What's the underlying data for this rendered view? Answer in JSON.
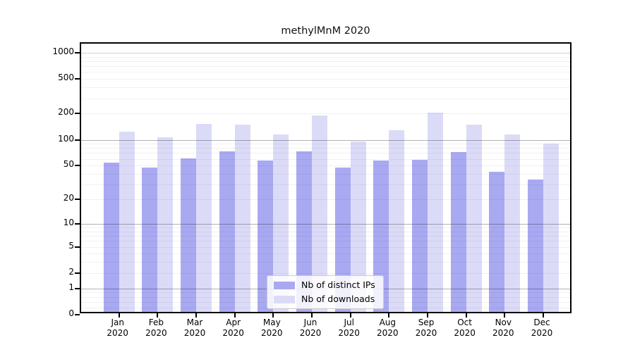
{
  "title": "methylMnM 2020",
  "y_axis": {
    "tick_labels": [
      "1000",
      "500",
      "200",
      "100",
      "50",
      "20",
      "10",
      "5",
      "2",
      "1",
      "0"
    ],
    "tick_values": [
      1000,
      500,
      200,
      100,
      50,
      20,
      10,
      5,
      2,
      1,
      0
    ]
  },
  "x_axis": {
    "months": [
      "Jan",
      "Feb",
      "Mar",
      "Apr",
      "May",
      "Jun",
      "Jul",
      "Aug",
      "Sep",
      "Oct",
      "Nov",
      "Dec"
    ],
    "year": "2020"
  },
  "legend": {
    "items": [
      {
        "label": "Nb of distinct IPs",
        "color": "#a9a9f2"
      },
      {
        "label": "Nb of downloads",
        "color": "#dbdbf8"
      }
    ]
  },
  "chart_data": {
    "type": "bar",
    "title": "methylMnM 2020",
    "categories": [
      "Jan 2020",
      "Feb 2020",
      "Mar 2020",
      "Apr 2020",
      "May 2020",
      "Jun 2020",
      "Jul 2020",
      "Aug 2020",
      "Sep 2020",
      "Oct 2020",
      "Nov 2020",
      "Dec 2020"
    ],
    "series": [
      {
        "name": "Nb of distinct IPs",
        "color": "#a9a9f2",
        "values": [
          50,
          44,
          56,
          68,
          53,
          68,
          44,
          53,
          54,
          67,
          39,
          32
        ]
      },
      {
        "name": "Nb of downloads",
        "color": "#dbdbf8",
        "values": [
          115,
          100,
          141,
          138,
          107,
          178,
          89,
          119,
          190,
          140,
          106,
          84
        ]
      }
    ],
    "yscale": "log10(1+x)",
    "yticks": [
      0,
      1,
      2,
      5,
      10,
      20,
      50,
      100,
      200,
      500,
      1000
    ],
    "ylim": [
      0,
      1270
    ],
    "grid": true,
    "legend_position": "lower-center-inside"
  }
}
